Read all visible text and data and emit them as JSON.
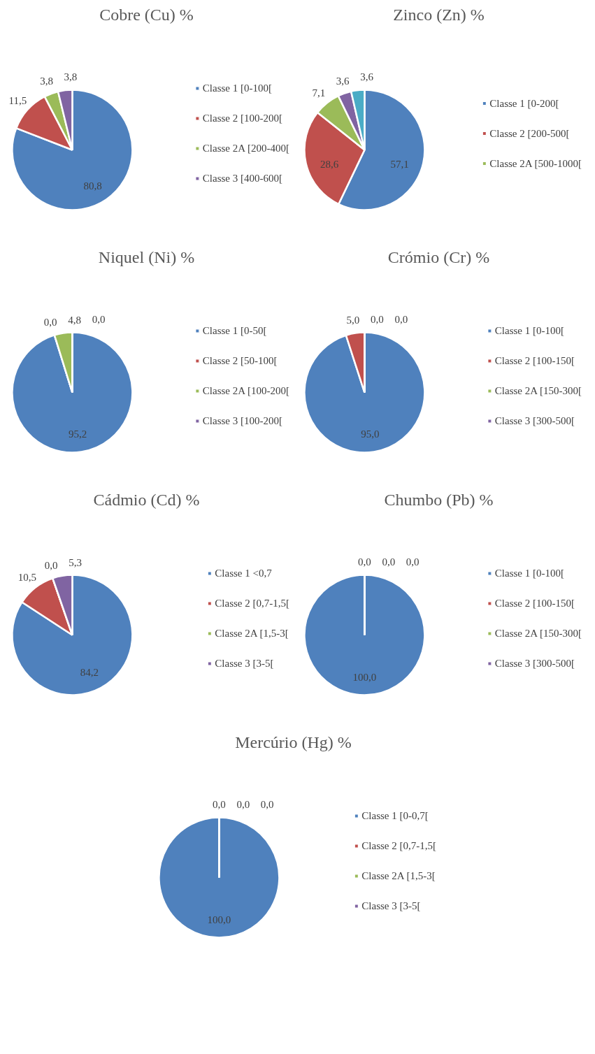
{
  "chart_data": [
    {
      "type": "pie",
      "title": "Cobre (Cu) %",
      "legend": "right",
      "categories": [
        "Classe 1 [0-100[",
        "Classe 2 [100-200[",
        "Classe 2A [200-400[",
        "Classe 3 [400-600["
      ],
      "values": [
        80.8,
        11.5,
        3.8,
        3.8
      ],
      "colors": [
        "#4f81bd",
        "#c0504d",
        "#9bbb59",
        "#8064a2"
      ],
      "value_labels": [
        "80,8",
        "11,5",
        "3,8",
        "3,8"
      ]
    },
    {
      "type": "pie",
      "title": "Zinco (Zn) %",
      "legend": "right",
      "categories": [
        "Classe 1 [0-200[",
        "Classe 2 [200-500[",
        "Classe 2A [500-1000[",
        null,
        null
      ],
      "values": [
        57.1,
        28.6,
        7.1,
        3.6,
        3.6
      ],
      "colors": [
        "#4f81bd",
        "#c0504d",
        "#9bbb59",
        "#8064a2",
        "#4bacc6"
      ],
      "value_labels": [
        "57,1",
        "28,6",
        "7,1",
        "3,6",
        "3,6"
      ]
    },
    {
      "type": "pie",
      "title": "Niquel (Ni) %",
      "legend": "right",
      "categories": [
        "Classe 1 [0-50[",
        "Classe 2 [50-100[",
        "Classe 2A [100-200[",
        "Classe 3 [100-200["
      ],
      "values": [
        95.2,
        0.0,
        4.8,
        0.0
      ],
      "colors": [
        "#4f81bd",
        "#c0504d",
        "#9bbb59",
        "#8064a2"
      ],
      "value_labels": [
        "95,2",
        "0,0",
        "4,8",
        "0,0"
      ]
    },
    {
      "type": "pie",
      "title": "Crómio (Cr) %",
      "legend": "right",
      "categories": [
        "Classe 1 [0-100[",
        "Classe 2 [100-150[",
        "Classe 2A [150-300[",
        "Classe 3 [300-500["
      ],
      "values": [
        95.0,
        5.0,
        0.0,
        0.0
      ],
      "colors": [
        "#4f81bd",
        "#c0504d",
        "#9bbb59",
        "#8064a2"
      ],
      "value_labels": [
        "95,0",
        "5,0",
        "0,0",
        "0,0"
      ]
    },
    {
      "type": "pie",
      "title": "Cádmio (Cd) %",
      "legend": "right",
      "categories": [
        "Classe 1 <0,7",
        "Classe 2 [0,7-1,5[",
        "Classe 2A [1,5-3[",
        "Classe 3 [3-5["
      ],
      "values": [
        84.2,
        10.5,
        0.0,
        5.3
      ],
      "colors": [
        "#4f81bd",
        "#c0504d",
        "#9bbb59",
        "#8064a2"
      ],
      "value_labels": [
        "84,2",
        "10,5",
        "0,0",
        "5,3"
      ]
    },
    {
      "type": "pie",
      "title": "Chumbo (Pb) %",
      "legend": "right",
      "categories": [
        "Classe 1 [0-100[",
        "Classe 2 [100-150[",
        "Classe 2A [150-300[",
        "Classe 3 [300-500["
      ],
      "values": [
        100.0,
        0.0,
        0.0,
        0.0
      ],
      "colors": [
        "#4f81bd",
        "#c0504d",
        "#9bbb59",
        "#8064a2"
      ],
      "value_labels": [
        "100,0",
        "0,0",
        "0,0",
        "0,0"
      ]
    },
    {
      "type": "pie",
      "title": "Mercúrio (Hg) %",
      "legend": "right",
      "categories": [
        "Classe 1 [0-0,7[",
        "Classe 2 [0,7-1,5[",
        "Classe 2A [1,5-3[",
        "Classe 3 [3-5["
      ],
      "values": [
        100.0,
        0.0,
        0.0,
        0.0
      ],
      "colors": [
        "#4f81bd",
        "#c0504d",
        "#9bbb59",
        "#8064a2"
      ],
      "value_labels": [
        "100,0",
        "0,0",
        "0,0",
        "0,0"
      ]
    }
  ]
}
